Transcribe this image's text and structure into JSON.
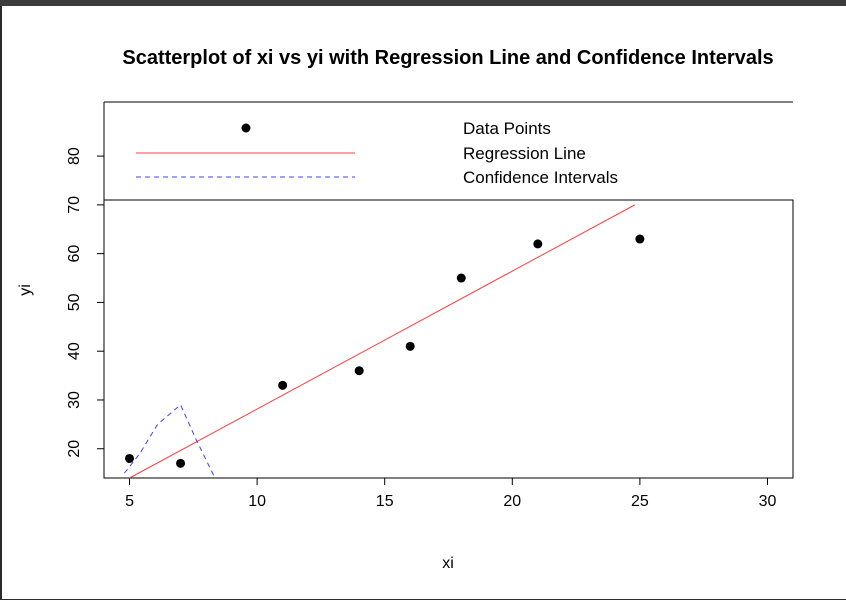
{
  "chart_data": {
    "type": "scatter",
    "title": "Scatterplot of xi vs yi with Regression Line and Confidence Intervals",
    "xlabel": "xi",
    "ylabel": "yi",
    "xlim": [
      4.0,
      31.0
    ],
    "ylim": [
      14.0,
      71.0
    ],
    "x_ticks": [
      5,
      10,
      15,
      20,
      25,
      30
    ],
    "y_ticks": [
      20,
      30,
      40,
      50,
      60,
      70,
      80
    ],
    "grid": false,
    "series": [
      {
        "name": "Data Points",
        "kind": "points",
        "color": "#000000",
        "x": [
          5,
          7,
          11,
          14,
          16,
          18,
          21,
          25
        ],
        "y": [
          18,
          17,
          33,
          36,
          41,
          55,
          62,
          63
        ]
      },
      {
        "name": "Regression Line",
        "kind": "line",
        "color": "#ff4040",
        "x": [
          5,
          24.8
        ],
        "y": [
          14.0,
          70.0
        ]
      },
      {
        "name": "Confidence Intervals",
        "kind": "dashed-line",
        "color": "#4040ff",
        "x": [
          4.8,
          5.4,
          6.1,
          7.0,
          7.6,
          8.3
        ],
        "y": [
          15.0,
          19.0,
          25.0,
          29.0,
          22.0,
          14.5
        ]
      }
    ],
    "legend": {
      "placement": "top",
      "entries": [
        "Data Points",
        "Regression Line",
        "Confidence Intervals"
      ]
    }
  }
}
